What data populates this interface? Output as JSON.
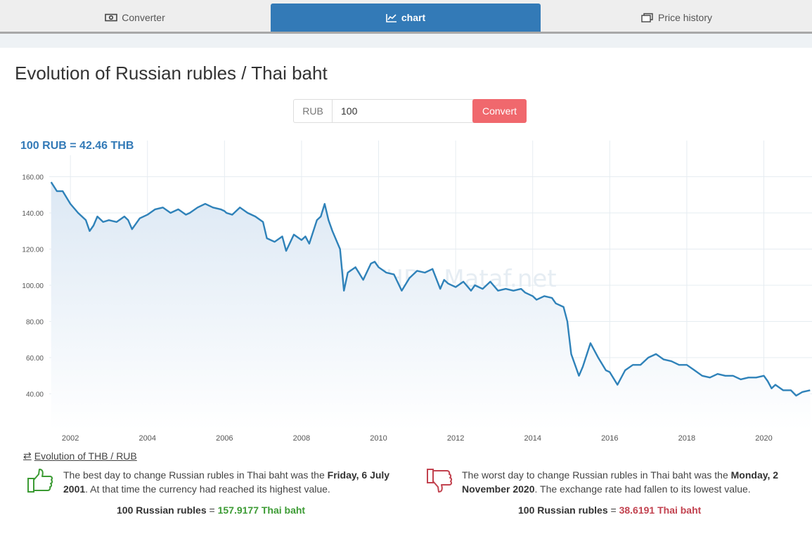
{
  "tabs": [
    {
      "label": "Converter",
      "icon": "banknote-icon"
    },
    {
      "label": "chart",
      "icon": "line-chart-icon"
    },
    {
      "label": "Price history",
      "icon": "stacked-cards-icon"
    }
  ],
  "page_title": "Evolution of Russian rubles / Thai baht",
  "converter": {
    "currency": "RUB",
    "amount": "100",
    "button": "Convert"
  },
  "rate_label": "100 RUB = 42.46 THB",
  "watermark": "RUB/THB - Mataf.net",
  "reverse_link": "Evolution of THB / RUB",
  "best": {
    "prefix": "The best day to change Russian rubles in Thai baht was the ",
    "date": "Friday, 6 July 2001",
    "suffix": ". At that time the currency had reached its highest value.",
    "result_left": "100 Russian rubles",
    "result_eq": " = ",
    "result_value": "157.9177 Thai baht"
  },
  "worst": {
    "prefix": "The worst day to change Russian rubles in Thai baht was the ",
    "date": "Monday, 2 November 2020",
    "suffix": ". The exchange rate had fallen to its lowest value.",
    "result_left": "100 Russian rubles",
    "result_eq": " = ",
    "result_value": "38.6191 Thai baht"
  },
  "colors": {
    "accent": "#337ab7",
    "convert": "#f0686d",
    "line": "#2f82b9",
    "best": "#3c9b34",
    "worst": "#c2424f"
  },
  "chart_data": {
    "type": "line",
    "title": "",
    "xlabel": "",
    "ylabel": "",
    "xlim": [
      2001.45,
      2021.25
    ],
    "ylim": [
      20,
      180
    ],
    "yticks": [
      40,
      60,
      80,
      100,
      120,
      140,
      160
    ],
    "ytick_labels": [
      "40.00",
      "60.00",
      "80.00",
      "100.00",
      "120.00",
      "140.00",
      "160.00"
    ],
    "xticks": [
      2002,
      2004,
      2006,
      2008,
      2010,
      2012,
      2014,
      2016,
      2018,
      2020
    ],
    "xtick_labels": [
      "2002",
      "2004",
      "2006",
      "2008",
      "2010",
      "2012",
      "2014",
      "2016",
      "2018",
      "2020"
    ],
    "grid": true,
    "series": [
      {
        "x": [
          2001.5,
          2001.65,
          2001.8,
          2002.0,
          2002.2,
          2002.4,
          2002.5,
          2002.6,
          2002.7,
          2002.85,
          2003.0,
          2003.2,
          2003.4,
          2003.5,
          2003.6,
          2003.7,
          2003.8,
          2004.0,
          2004.2,
          2004.4,
          2004.6,
          2004.8,
          2005.0,
          2005.1,
          2005.3,
          2005.5,
          2005.7,
          2005.9,
          2006.0,
          2006.05,
          2006.2,
          2006.4,
          2006.6,
          2006.8,
          2007.0,
          2007.1,
          2007.3,
          2007.5,
          2007.6,
          2007.8,
          2008.0,
          2008.1,
          2008.2,
          2008.4,
          2008.5,
          2008.6,
          2008.7,
          2008.8,
          2009.0,
          2009.1,
          2009.2,
          2009.4,
          2009.6,
          2009.8,
          2009.9,
          2010.0,
          2010.2,
          2010.4,
          2010.6,
          2010.8,
          2011.0,
          2011.2,
          2011.4,
          2011.6,
          2011.7,
          2011.8,
          2012.0,
          2012.2,
          2012.4,
          2012.5,
          2012.7,
          2012.9,
          2013.1,
          2013.3,
          2013.5,
          2013.7,
          2013.8,
          2014.0,
          2014.1,
          2014.3,
          2014.5,
          2014.6,
          2014.8,
          2014.9,
          2015.0,
          2015.2,
          2015.3,
          2015.5,
          2015.7,
          2015.9,
          2016.0,
          2016.2,
          2016.4,
          2016.6,
          2016.8,
          2017.0,
          2017.2,
          2017.4,
          2017.6,
          2017.8,
          2018.0,
          2018.2,
          2018.4,
          2018.6,
          2018.8,
          2019.0,
          2019.2,
          2019.4,
          2019.6,
          2019.8,
          2020.0,
          2020.1,
          2020.2,
          2020.3,
          2020.5,
          2020.7,
          2020.84,
          2021.0,
          2021.2
        ],
        "y": [
          157,
          152,
          152,
          145,
          140,
          136,
          130,
          133,
          138,
          135,
          136,
          135,
          138,
          136,
          131,
          134,
          137,
          139,
          142,
          143,
          140,
          142,
          139,
          140,
          143,
          145,
          143,
          142,
          141,
          140,
          139,
          143,
          140,
          138,
          135,
          126,
          124,
          127,
          119,
          128,
          125,
          127,
          123,
          136,
          138,
          145,
          136,
          130,
          120,
          97,
          107,
          110,
          103,
          112,
          113,
          110,
          107,
          106,
          97,
          104,
          108,
          107,
          109,
          98,
          103,
          101,
          99,
          102,
          97,
          100,
          98,
          102,
          97,
          98,
          97,
          98,
          96,
          94,
          92,
          94,
          93,
          90,
          88,
          80,
          62,
          50,
          55,
          68,
          60,
          53,
          52,
          45,
          53,
          56,
          56,
          60,
          62,
          59,
          58,
          56,
          56,
          53,
          50,
          49,
          51,
          50,
          50,
          48,
          49,
          49,
          50,
          47,
          43,
          45,
          42,
          42,
          39,
          41,
          42
        ]
      }
    ]
  }
}
